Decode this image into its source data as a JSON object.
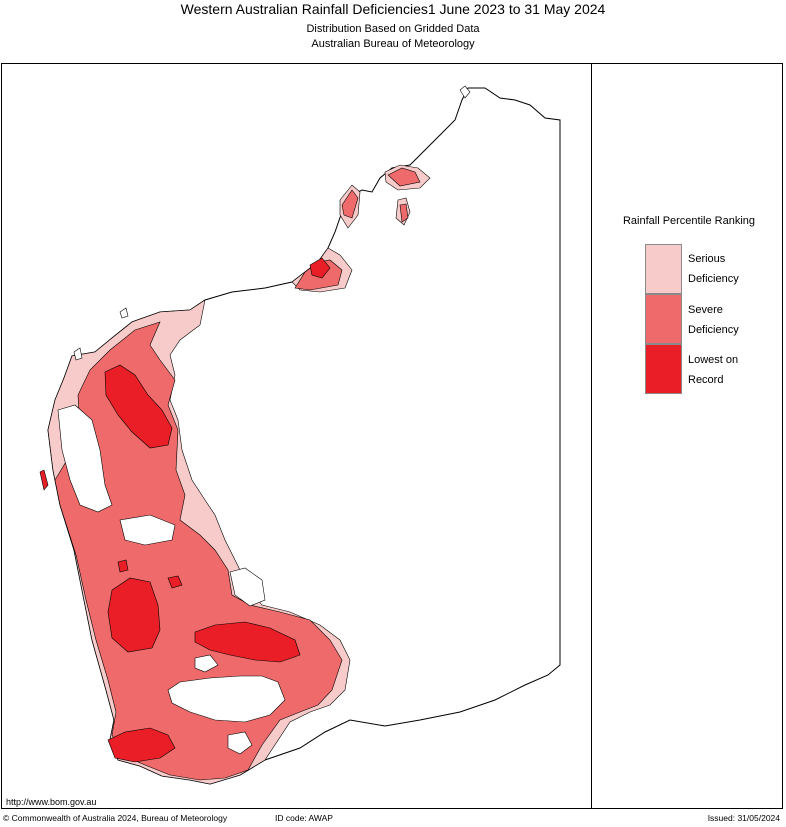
{
  "header": {
    "title": "Western Australian Rainfall Deficiencies1 June 2023 to 31 May 2024",
    "subtitle_1": "Distribution Based on Gridded Data",
    "subtitle_2": "Australian Bureau of Meteorology"
  },
  "legend": {
    "title": "Rainfall Percentile Ranking",
    "items": [
      {
        "label_line1": "Serious",
        "label_line2": "Deficiency",
        "color": "#f8cbcb"
      },
      {
        "label_line1": "Severe",
        "label_line2": "Deficiency",
        "color": "#ef6a6a"
      },
      {
        "label_line1": "Lowest on",
        "label_line2": "Record",
        "color": "#ea1e26"
      }
    ]
  },
  "map": {
    "outline_color": "#000000",
    "background_color": "#ffffff"
  },
  "footer": {
    "url": "http://www.bom.gov.au",
    "copyright": "© Commonwealth of Australia 2024, Bureau of Meteorology",
    "id_code": "ID code: AWAP",
    "issued": "Issued: 31/05/2024"
  }
}
